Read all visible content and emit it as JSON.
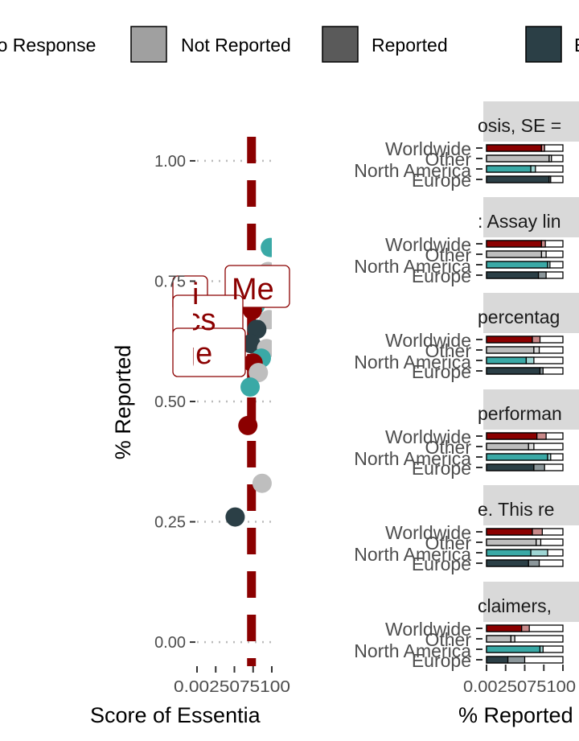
{
  "legend": {
    "items": [
      {
        "label": "No Response",
        "color": "#ffffff"
      },
      {
        "label": "Not Reported",
        "color": "#a0a0a0"
      },
      {
        "label": "Reported",
        "color": "#5a5a5a"
      },
      {
        "label": "E",
        "color": "#2b3f46"
      }
    ]
  },
  "colors": {
    "worldwide": "#8b0000",
    "other": "#bebebe",
    "north_america": "#3aa9a6",
    "europe": "#2b3f46",
    "reference_line": "#8b0000",
    "strip_bg": "#d9d9d9"
  },
  "chart_data": [
    {
      "type": "scatter",
      "xlabel": "Score of Essentia",
      "ylabel": "% Reported",
      "ylim": [
        -0.05,
        1.05
      ],
      "xlim": [
        0,
        1
      ],
      "yticks": [
        "0.00",
        "0.25",
        "0.50",
        "0.75",
        "1.00"
      ],
      "xticks": [
        "0.00",
        "0.25",
        "0.50",
        "0.75",
        "1.00"
      ],
      "x_tick_text": "0.0025075100",
      "reference_x": 0.75,
      "annotations": [
        {
          "text": "Me",
          "x": 0.95,
          "y": 0.75
        },
        {
          "text": "si",
          "x": 0.1,
          "y": 0.73
        },
        {
          "text": "ics",
          "x": 0.1,
          "y": 0.68
        },
        {
          "text": "ge",
          "x": 0.1,
          "y": 0.61
        }
      ],
      "points": [
        {
          "x": 0.98,
          "y": 0.82,
          "group": "north_america"
        },
        {
          "x": 0.95,
          "y": 0.77,
          "group": "other"
        },
        {
          "x": 0.85,
          "y": 0.72,
          "group": "europe"
        },
        {
          "x": 0.78,
          "y": 0.7,
          "group": "north_america"
        },
        {
          "x": 0.74,
          "y": 0.69,
          "group": "worldwide"
        },
        {
          "x": 0.96,
          "y": 0.67,
          "group": "other"
        },
        {
          "x": 0.8,
          "y": 0.65,
          "group": "europe"
        },
        {
          "x": 0.72,
          "y": 0.62,
          "group": "europe"
        },
        {
          "x": 0.93,
          "y": 0.61,
          "group": "other"
        },
        {
          "x": 0.86,
          "y": 0.59,
          "group": "north_america"
        },
        {
          "x": 0.75,
          "y": 0.58,
          "group": "worldwide"
        },
        {
          "x": 0.82,
          "y": 0.56,
          "group": "other"
        },
        {
          "x": 0.71,
          "y": 0.53,
          "group": "north_america"
        },
        {
          "x": 0.68,
          "y": 0.45,
          "group": "worldwide"
        },
        {
          "x": 0.87,
          "y": 0.33,
          "group": "other"
        },
        {
          "x": 0.51,
          "y": 0.26,
          "group": "europe"
        }
      ]
    },
    {
      "type": "bar",
      "xlabel": "% Reported",
      "x_tick_text": "0.0025075100",
      "categories": [
        "Worldwide",
        "Other",
        "North America",
        "Europe"
      ],
      "facets": [
        {
          "title": "osis, SE =",
          "reported": [
            0.72,
            0.82,
            0.58,
            0.82
          ],
          "not_reported": [
            0.04,
            0.03,
            0.06,
            0.02
          ]
        },
        {
          "title": ": Assay lin",
          "reported": [
            0.72,
            0.72,
            0.8,
            0.68
          ],
          "not_reported": [
            0.05,
            0.06,
            0.03,
            0.1
          ]
        },
        {
          "title": "percentag",
          "reported": [
            0.6,
            0.62,
            0.52,
            0.7
          ],
          "not_reported": [
            0.1,
            0.07,
            0.1,
            0.04
          ]
        },
        {
          "title": "performan",
          "reported": [
            0.66,
            0.55,
            0.8,
            0.62
          ],
          "not_reported": [
            0.12,
            0.07,
            0.04,
            0.14
          ]
        },
        {
          "title": "e. This re",
          "reported": [
            0.6,
            0.65,
            0.58,
            0.55
          ],
          "not_reported": [
            0.13,
            0.06,
            0.22,
            0.14
          ]
        },
        {
          "title": "claimers, ",
          "reported": [
            0.46,
            0.32,
            0.7,
            0.28
          ],
          "not_reported": [
            0.1,
            0.05,
            0.04,
            0.22
          ]
        }
      ]
    }
  ]
}
